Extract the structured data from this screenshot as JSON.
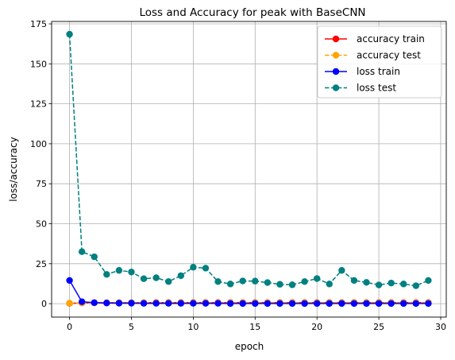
{
  "chart_data": {
    "type": "line",
    "title": "Loss and Accuracy for peak with BaseCNN",
    "xlabel": "epoch",
    "ylabel": "loss/accuracy",
    "xlim": [
      -1.45,
      30.45
    ],
    "ylim": [
      -8.4,
      176.5
    ],
    "xticks": [
      0,
      5,
      10,
      15,
      20,
      25,
      30
    ],
    "yticks": [
      0,
      25,
      50,
      75,
      100,
      125,
      150,
      175
    ],
    "grid": true,
    "legend_position": "top-right",
    "x": [
      0,
      1,
      2,
      3,
      4,
      5,
      6,
      7,
      8,
      9,
      10,
      11,
      12,
      13,
      14,
      15,
      16,
      17,
      18,
      19,
      20,
      21,
      22,
      23,
      24,
      25,
      26,
      27,
      28,
      29
    ],
    "series": [
      {
        "name": "accuracy train",
        "color": "#ff0000",
        "linestyle": "solid",
        "marker": "circle",
        "values": [
          0.2,
          0.5,
          0.6,
          0.6,
          0.6,
          0.6,
          0.6,
          0.7,
          0.7,
          0.7,
          0.7,
          0.7,
          0.7,
          0.7,
          0.7,
          0.7,
          0.7,
          0.7,
          0.7,
          0.7,
          0.7,
          0.7,
          0.7,
          0.7,
          0.7,
          0.7,
          0.7,
          0.7,
          0.7,
          0.7
        ]
      },
      {
        "name": "accuracy test",
        "color": "#ffa500",
        "linestyle": "dashed",
        "marker": "circle",
        "values": [
          0.3,
          0.5,
          0.5,
          0.6,
          0.6,
          0.6,
          0.6,
          0.6,
          0.6,
          0.6,
          0.6,
          0.6,
          0.6,
          0.6,
          0.6,
          0.6,
          0.6,
          0.6,
          0.6,
          0.6,
          0.6,
          0.6,
          0.6,
          0.6,
          0.6,
          0.6,
          0.6,
          0.6,
          0.6,
          0.6
        ]
      },
      {
        "name": "loss train",
        "color": "#0000ff",
        "linestyle": "solid",
        "marker": "circle",
        "values": [
          14.5,
          1.2,
          0.6,
          0.4,
          0.3,
          0.3,
          0.2,
          0.2,
          0.2,
          0.2,
          0.2,
          0.2,
          0.2,
          0.1,
          0.1,
          0.1,
          0.1,
          0.1,
          0.1,
          0.1,
          0.1,
          0.1,
          0.1,
          0.1,
          0.1,
          0.1,
          0.1,
          0.1,
          0.1,
          0.1
        ]
      },
      {
        "name": "loss test",
        "color": "#008080",
        "linestyle": "dashed",
        "marker": "circle",
        "values": [
          168.5,
          32.5,
          29.3,
          18.3,
          20.8,
          19.8,
          15.6,
          16.2,
          13.8,
          17.5,
          22.8,
          22.2,
          13.8,
          12.3,
          14.2,
          14.1,
          13.2,
          12.1,
          11.8,
          13.8,
          15.7,
          12.3,
          20.8,
          14.5,
          13.3,
          11.7,
          12.9,
          12.3,
          11.2,
          14.5
        ]
      }
    ]
  }
}
